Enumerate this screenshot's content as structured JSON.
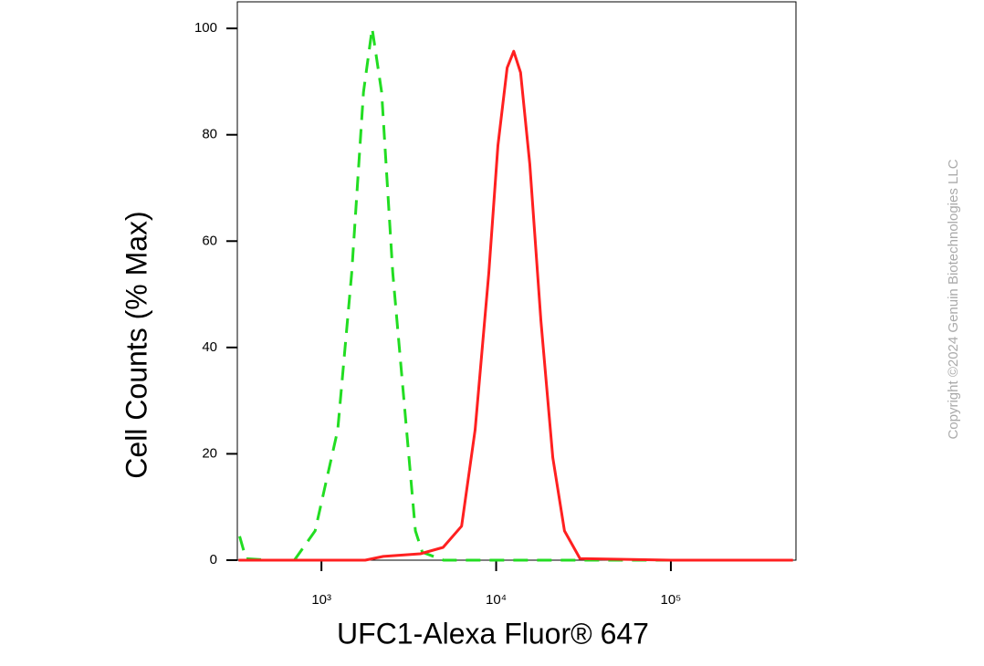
{
  "chart_data": {
    "type": "line",
    "x_label": "UFC1-Alexa Fluor® 647",
    "y_label": "Cell Counts (% Max)",
    "watermark": "Copyright ©2024 Genuin Biotechnologies LLC",
    "x_scale": "log",
    "xlim": [
      330,
      520000
    ],
    "ylim": [
      0,
      105
    ],
    "xticks": [
      {
        "value": 1000,
        "label": "10³"
      },
      {
        "value": 10000,
        "label": "10⁴"
      },
      {
        "value": 100000,
        "label": "10⁵"
      }
    ],
    "yticks": [
      0,
      20,
      40,
      60,
      80,
      100
    ],
    "series": [
      {
        "color": "#22dd22",
        "dashed": true,
        "x": [
          340,
          370,
          500,
          700,
          920,
          1240,
          1490,
          1740,
          1950,
          2210,
          2560,
          3070,
          3450,
          3780,
          5000,
          20000,
          100000,
          500000
        ],
        "values": [
          4.5,
          0.3,
          0,
          0,
          5.5,
          24.5,
          54,
          88,
          100,
          88,
          54,
          24.5,
          5.5,
          1.5,
          0,
          0,
          0,
          0
        ]
      },
      {
        "color": "#ff2020",
        "dashed": false,
        "x": [
          335,
          1780,
          2260,
          3680,
          4970,
          6340,
          7580,
          9080,
          10240,
          11560,
          12600,
          13800,
          15580,
          18030,
          21100,
          24600,
          30200,
          100000,
          500000
        ],
        "values": [
          0,
          0,
          0.7,
          1.2,
          2.4,
          6.4,
          24.5,
          54,
          78,
          92.6,
          95.7,
          91.7,
          74.5,
          45,
          19.3,
          5.5,
          0.3,
          0,
          0
        ]
      }
    ]
  }
}
